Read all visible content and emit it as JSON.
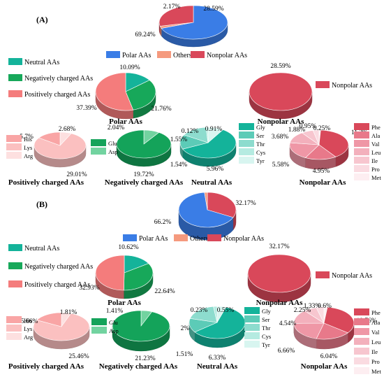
{
  "colors": {
    "polar": "#3a7de6",
    "others": "#f59a7e",
    "nonpolar": "#d9485a",
    "neutral": "#14b39a",
    "negative": "#17a85a",
    "positive": "#f47c7c",
    "his": "#f9a5a5",
    "lys": "#fbc0c0",
    "arg": "#fde0e0",
    "glu": "#14a35a",
    "asp": "#72d3a0",
    "gly": "#14b39a",
    "ser": "#5ccbb7",
    "thr": "#8ddcce",
    "cys": "#b5ebe1",
    "tyr": "#d8f5f0",
    "phe": "#d9485a",
    "ala": "#e8798a",
    "val": "#ef97a6",
    "leu": "#f3b0bc",
    "ile": "#f7c6cf",
    "pro": "#fadbe1",
    "met": "#fdeef1"
  },
  "chart_data": [
    {
      "panel": "(A)",
      "charts": [
        {
          "type": "pie",
          "id": "A-top",
          "categories": [
            "Polar AAs",
            "Others",
            "Nonpolar AAs"
          ],
          "values": [
            69.24,
            2.17,
            28.59
          ],
          "labels": [
            "69.24%",
            "2.17%",
            "28.59%"
          ],
          "legend": [
            "Polar AAs",
            "Others",
            "Nonpolar AAs"
          ]
        },
        {
          "type": "pie",
          "id": "A-polar",
          "title": "Polar AAs",
          "categories": [
            "Neutral AAs",
            "Negatively charged AAs",
            "Positively charged AAs"
          ],
          "values": [
            10.09,
            21.76,
            37.39
          ],
          "labels": [
            "10.09%",
            "21.76%",
            "37.39%"
          ],
          "legend": [
            "Neutral AAs",
            "Negatively charged AAs",
            "Positively charged AAs"
          ]
        },
        {
          "type": "pie",
          "id": "A-nonpolar",
          "title": "Nonpolar AAs",
          "categories": [
            "Nonpolar AAs"
          ],
          "values": [
            28.59
          ],
          "labels": [
            "28.59%"
          ],
          "legend": [
            "Nonpolar AAs"
          ]
        },
        {
          "type": "pie",
          "id": "A-pos",
          "title": "Positively charged AAs",
          "categories": [
            "Arg",
            "Lys",
            "His"
          ],
          "values": [
            2.68,
            29.01,
            5.7
          ],
          "labels": [
            "2.68%",
            "29.01%",
            "5.7%"
          ],
          "legend": [
            "His",
            "Lys",
            "Arg"
          ]
        },
        {
          "type": "pie",
          "id": "A-neg",
          "title": "Negatively charged AAs",
          "categories": [
            "Asp",
            "Glu"
          ],
          "values": [
            2.04,
            19.72
          ],
          "labels": [
            "2.04%",
            "19.72%"
          ],
          "legend": [
            "Glu",
            "Asp"
          ]
        },
        {
          "type": "pie",
          "id": "A-neu",
          "title": "Neutral AAs",
          "categories": [
            "Tyr",
            "Gly",
            "Ser",
            "Thr",
            "Cys"
          ],
          "values": [
            0.91,
            5.96,
            1.54,
            1.55,
            0.12
          ],
          "labels": [
            "0.91%",
            "5.96%",
            "1.54%",
            "1.55%",
            "0.12%"
          ],
          "legend": [
            "Gly",
            "Ser",
            "Thr",
            "Cys",
            "Tyr"
          ]
        },
        {
          "type": "pie",
          "id": "A-np",
          "title": "Nonpolar AAs",
          "categories": [
            "Met",
            "Phe",
            "Ala",
            "Val",
            "Leu",
            "Ile",
            "Pro"
          ],
          "values": [
            0.25,
            11.3,
            4.95,
            5.58,
            3.68,
            1.88,
            0.95
          ],
          "labels": [
            "0.25%",
            "11.3%",
            "4.95%",
            "5.58%",
            "3.68%",
            "1.88%",
            "0.95%"
          ],
          "legend": [
            "Phe",
            "Ala",
            "Val",
            "Leu",
            "Ile",
            "Pro",
            "Met"
          ]
        }
      ]
    },
    {
      "panel": "(B)",
      "charts": [
        {
          "type": "pie",
          "id": "B-top",
          "categories": [
            "Nonpolar AAs",
            "Polar AAs",
            "Others"
          ],
          "values": [
            32.17,
            66.2,
            1.63
          ],
          "labels": [
            "32.17%",
            "66.2%",
            ""
          ],
          "legend": [
            "Polar AAs",
            "Others",
            "Nonpolar AAs"
          ]
        },
        {
          "type": "pie",
          "id": "B-polar",
          "title": "Polar AAs",
          "categories": [
            "Neutral AAs",
            "Negatively charged AAs",
            "Positively charged AAs"
          ],
          "values": [
            10.62,
            22.64,
            32.93
          ],
          "labels": [
            "10.62%",
            "22.64%",
            "32.93%"
          ],
          "legend": [
            "Neutral AAs",
            "Negatively charged AAs",
            "Positively charged AAs"
          ]
        },
        {
          "type": "pie",
          "id": "B-nonpolar",
          "title": "Nonpolar AAs",
          "categories": [
            "Nonpolar AAs"
          ],
          "values": [
            32.17
          ],
          "labels": [
            "32.17%"
          ],
          "legend": [
            "Nonpolar AAs"
          ]
        },
        {
          "type": "pie",
          "id": "B-pos",
          "title": "Positively charged AAs",
          "categories": [
            "Arg",
            "Lys",
            "His"
          ],
          "values": [
            1.81,
            25.46,
            5.66
          ],
          "labels": [
            "1.81%",
            "25.46%",
            "5.66%"
          ],
          "legend": [
            "His",
            "Lys",
            "Arg"
          ]
        },
        {
          "type": "pie",
          "id": "B-neg",
          "title": "Negatively charged AAs",
          "categories": [
            "Asp",
            "Glu"
          ],
          "values": [
            1.41,
            21.23
          ],
          "labels": [
            "1.41%",
            "21.23%"
          ],
          "legend": [
            "Glu",
            "Asp"
          ]
        },
        {
          "type": "pie",
          "id": "B-neu",
          "title": "Neutral AAs",
          "categories": [
            "Tyr",
            "Gly",
            "Ser",
            "Thr",
            "Cys"
          ],
          "values": [
            0.55,
            6.33,
            1.51,
            2,
            0.23
          ],
          "labels": [
            "0.55%",
            "6.33%",
            "1.51%",
            "2%",
            "0.23%"
          ],
          "legend": [
            "Gly",
            "Ser",
            "Thr",
            "Cys",
            "Tyr"
          ]
        },
        {
          "type": "pie",
          "id": "B-np",
          "title": "Nonpolar AAs",
          "categories": [
            "Met",
            "Phe",
            "Ala",
            "Val",
            "Leu",
            "Ile",
            "Pro"
          ],
          "values": [
            0.6,
            10.76,
            6.04,
            6.66,
            4.54,
            2.25,
            1.33
          ],
          "labels": [
            "0.6%",
            "10.76%",
            "6.04%",
            "6.66%",
            "4.54%",
            "2.25%",
            "1.33%"
          ],
          "legend": [
            "Phe",
            "Ala",
            "Val",
            "Leu",
            "Ile",
            "Pro",
            "Met"
          ]
        }
      ]
    }
  ]
}
